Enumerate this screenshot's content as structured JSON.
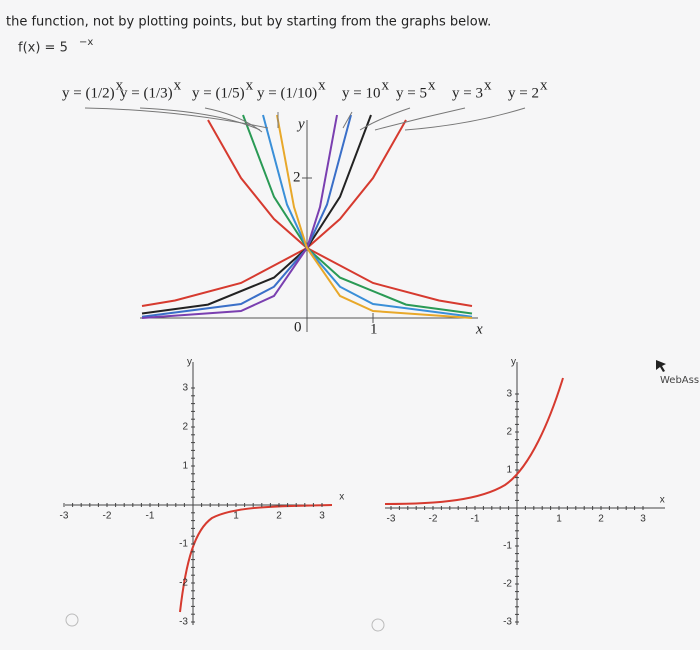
{
  "instruction": "the function, not by plotting points, but by starting from the graphs below.",
  "function": {
    "name": "f(x) = 5",
    "exponent": "−x"
  },
  "reference_graph": {
    "labels": [
      {
        "text": "y = (1/2)",
        "exponent": "x"
      },
      {
        "text": "y = (1/3)",
        "exponent": "x"
      },
      {
        "text": "y = (1/5)",
        "exponent": "x"
      },
      {
        "text": "y = (1/10)",
        "exponent": "x"
      },
      {
        "text": "y = 10",
        "exponent": "x"
      },
      {
        "text": "y = 5",
        "exponent": "x"
      },
      {
        "text": "y = 3",
        "exponent": "x"
      },
      {
        "text": "y = 2",
        "exponent": "x"
      }
    ],
    "x_axis": "x",
    "y_axis": "y",
    "y_tick": "2",
    "origin": "0",
    "x_tick": "1"
  },
  "options": [
    {
      "x_axis": "x",
      "y_axis": "y",
      "x_ticks": [
        "-3",
        "-2",
        "-1",
        "1",
        "2",
        "3"
      ],
      "y_ticks": [
        "3",
        "2",
        "1",
        "-1",
        "-2",
        "-3"
      ]
    },
    {
      "x_axis": "x",
      "y_axis": "y",
      "x_ticks": [
        "-3",
        "-2",
        "-1",
        "1",
        "2",
        "3"
      ],
      "y_ticks": [
        "3",
        "2",
        "1",
        "-1",
        "-2",
        "-3"
      ]
    }
  ],
  "sidebar": "WebAssi"
}
